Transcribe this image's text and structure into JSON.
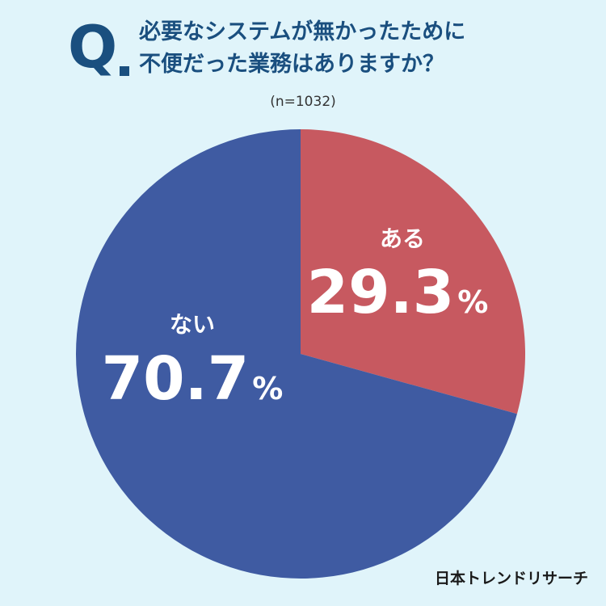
{
  "question": {
    "mark": "Q",
    "title_line1": "必要なシステムが無かったために",
    "title_line2": "不便だった業務はありますか？",
    "sample": "(n=1032)"
  },
  "chart_data": {
    "type": "pie",
    "slices": [
      {
        "label": "ある",
        "value": 29.3,
        "display": "29.3",
        "unit": "%",
        "color": "#c75960"
      },
      {
        "label": "ない",
        "value": 70.7,
        "display": "70.7",
        "unit": "%",
        "color": "#3f5ba2"
      }
    ],
    "start": "top",
    "direction": "clockwise"
  },
  "credit": "日本トレンドリサーチ"
}
